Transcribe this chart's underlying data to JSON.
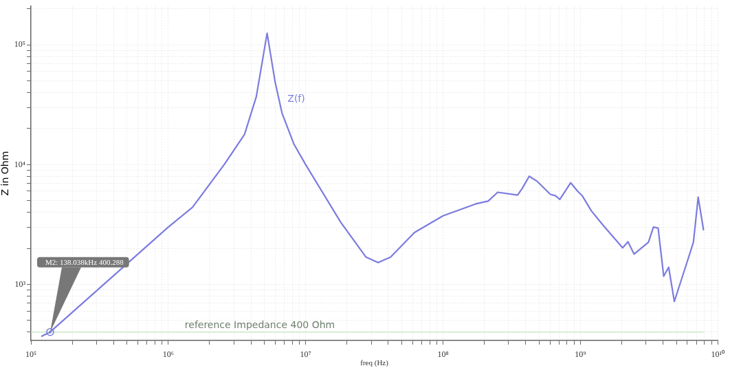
{
  "chart_data": {
    "type": "line",
    "xlabel": "freq (Hz)",
    "ylabel": "Z in Ohm",
    "log": "xy",
    "grid": true,
    "legend": false,
    "marker": "none",
    "line_style": "solid",
    "xlim": [
      100000,
      10000000000
    ],
    "xticks": [
      {
        "value": 100000,
        "label": "10⁵"
      },
      {
        "value": 200000,
        "label": null
      },
      {
        "value": 300000,
        "label": null
      },
      {
        "value": 400000,
        "label": null
      },
      {
        "value": 500000,
        "label": null
      },
      {
        "value": 600000,
        "label": null
      },
      {
        "value": 700000,
        "label": null
      },
      {
        "value": 800000,
        "label": null
      },
      {
        "value": 900000,
        "label": null
      },
      {
        "value": 1000000,
        "label": "10⁶"
      },
      {
        "value": 2000000,
        "label": null
      },
      {
        "value": 3000000,
        "label": null
      },
      {
        "value": 4000000,
        "label": null
      },
      {
        "value": 5000000,
        "label": null
      },
      {
        "value": 6000000,
        "label": null
      },
      {
        "value": 7000000,
        "label": null
      },
      {
        "value": 8000000,
        "label": null
      },
      {
        "value": 9000000,
        "label": null
      },
      {
        "value": 10000000,
        "label": "10⁷"
      },
      {
        "value": 20000000,
        "label": null
      },
      {
        "value": 30000000,
        "label": null
      },
      {
        "value": 40000000,
        "label": null
      },
      {
        "value": 50000000,
        "label": null
      },
      {
        "value": 60000000,
        "label": null
      },
      {
        "value": 70000000,
        "label": null
      },
      {
        "value": 80000000,
        "label": null
      },
      {
        "value": 90000000,
        "label": null
      },
      {
        "value": 100000000,
        "label": "10⁸"
      },
      {
        "value": 200000000,
        "label": null
      },
      {
        "value": 300000000,
        "label": null
      },
      {
        "value": 400000000,
        "label": null
      },
      {
        "value": 500000000,
        "label": null
      },
      {
        "value": 600000000,
        "label": null
      },
      {
        "value": 700000000,
        "label": null
      },
      {
        "value": 800000000,
        "label": null
      },
      {
        "value": 900000000,
        "label": null
      },
      {
        "value": 1000000000,
        "label": "10⁹"
      },
      {
        "value": 2000000000,
        "label": null
      },
      {
        "value": 3000000000,
        "label": null
      },
      {
        "value": 4000000000,
        "label": null
      },
      {
        "value": 5000000000,
        "label": null
      },
      {
        "value": 6000000000,
        "label": null
      },
      {
        "value": 7000000000,
        "label": null
      },
      {
        "value": 8000000000,
        "label": null
      },
      {
        "value": 9000000000,
        "label": null
      },
      {
        "value": 10000000000,
        "label": "10¹⁰"
      }
    ],
    "ylim": [
      340,
      210000
    ],
    "yticks": [
      {
        "value": 400,
        "label": null
      },
      {
        "value": 500,
        "label": null
      },
      {
        "value": 600,
        "label": null
      },
      {
        "value": 700,
        "label": null
      },
      {
        "value": 800,
        "label": null
      },
      {
        "value": 900,
        "label": null
      },
      {
        "value": 1000,
        "label": "10³"
      },
      {
        "value": 2000,
        "label": null
      },
      {
        "value": 3000,
        "label": null
      },
      {
        "value": 4000,
        "label": null
      },
      {
        "value": 5000,
        "label": null
      },
      {
        "value": 6000,
        "label": null
      },
      {
        "value": 7000,
        "label": null
      },
      {
        "value": 8000,
        "label": null
      },
      {
        "value": 9000,
        "label": null
      },
      {
        "value": 10000,
        "label": "10⁴"
      },
      {
        "value": 20000,
        "label": null
      },
      {
        "value": 30000,
        "label": null
      },
      {
        "value": 40000,
        "label": null
      },
      {
        "value": 50000,
        "label": null
      },
      {
        "value": 60000,
        "label": null
      },
      {
        "value": 70000,
        "label": null
      },
      {
        "value": 80000,
        "label": null
      },
      {
        "value": 90000,
        "label": null
      },
      {
        "value": 100000,
        "label": "10⁵"
      },
      {
        "value": 200000,
        "label": null
      }
    ],
    "series": [
      {
        "name": "Z(f)",
        "color": "#7b7be0",
        "x": [
          120000,
          138038,
          1000000,
          1500000,
          2550000,
          3590000,
          4370000,
          5240000,
          6000000,
          6730000,
          8200000,
          10000000,
          18000000,
          27500000,
          33700000,
          41500000,
          62000000,
          100000000,
          173000000,
          213000000,
          250000000,
          349000000,
          378000000,
          424000000,
          485000000,
          604000000,
          660000000,
          708000000,
          850000000,
          950000000,
          1030000000,
          1200000000,
          1460000000,
          2030000000,
          2220000000,
          2460000000,
          3130000000,
          3400000000,
          3680000000,
          4040000000,
          4390000000,
          4830000000,
          6080000000,
          6650000000,
          7200000000,
          7870000000
        ],
        "values": [
          369,
          400.288,
          3010,
          4400,
          10000,
          17900,
          36900,
          125000,
          48600,
          26900,
          14900,
          10000,
          3300,
          1690,
          1520,
          1690,
          2710,
          3740,
          4700,
          4960,
          5880,
          5570,
          6360,
          8000,
          7250,
          5650,
          5500,
          5120,
          7060,
          6040,
          5510,
          4120,
          3130,
          2020,
          2270,
          1790,
          2250,
          3010,
          2950,
          1170,
          1390,
          720,
          1630,
          2250,
          5360,
          2860
        ]
      }
    ],
    "ref_lines": [
      {
        "axis": "y",
        "value": 400,
        "label": "reference Impedance 400 Ohm",
        "color": "#c8e8c8"
      }
    ],
    "annotations": [
      {
        "text": "M2: 138.038kHz 400.288",
        "x": 138038,
        "y": 400.288
      }
    ]
  }
}
